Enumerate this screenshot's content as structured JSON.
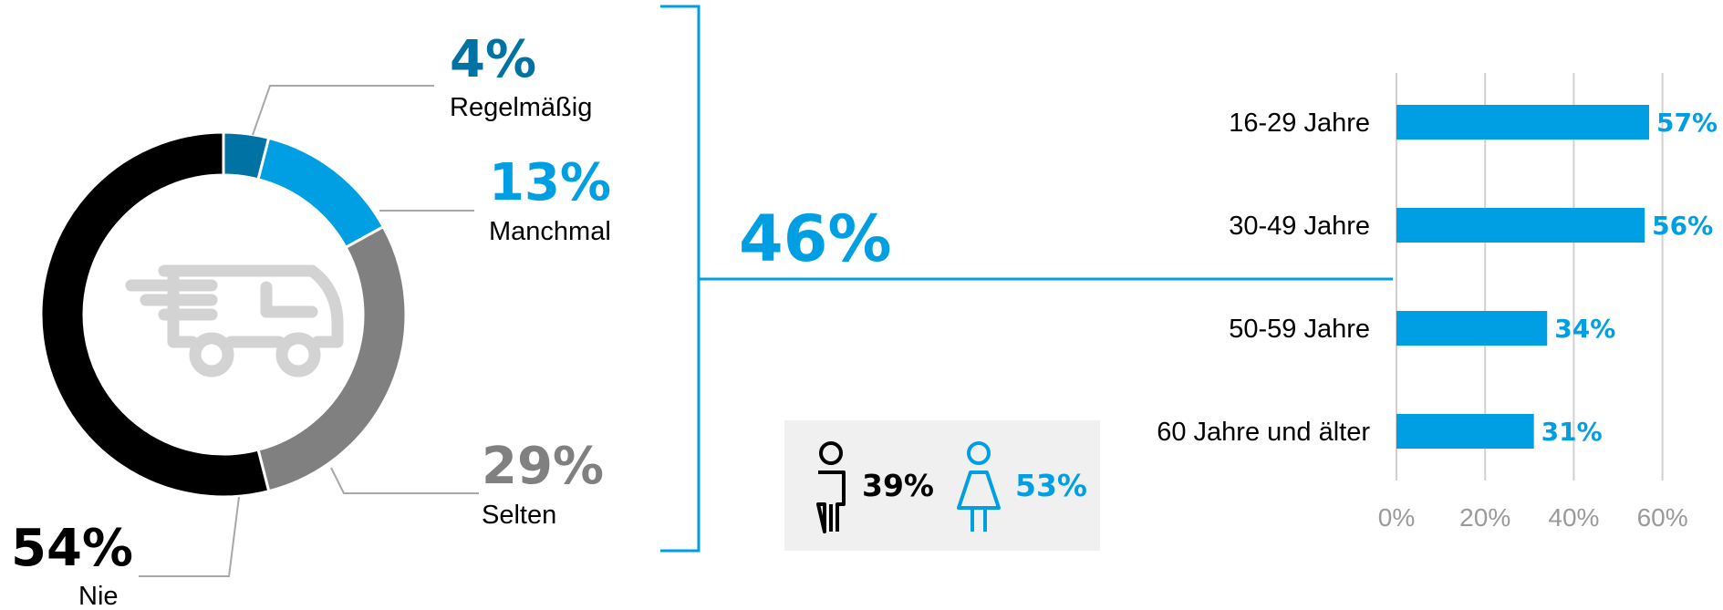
{
  "colors": {
    "dark_blue": "#0072A3",
    "light_blue": "#009FE3",
    "gray": "#808080",
    "black": "#000000",
    "icon_gray": "#D3D3D3",
    "grid": "#D0D0D0",
    "box_bg": "#F0F0F0"
  },
  "chart_data": [
    {
      "type": "pie",
      "donut": true,
      "center_icon": "delivery-van-icon",
      "slices": [
        {
          "label": "Regelmäßig",
          "value": 4,
          "display": "4%",
          "color": "#0072A3"
        },
        {
          "label": "Manchmal",
          "value": 13,
          "display": "13%",
          "color": "#009FE3"
        },
        {
          "label": "Selten",
          "value": 29,
          "display": "29%",
          "color": "#808080"
        },
        {
          "label": "Nie",
          "value": 54,
          "display": "54%",
          "color": "#000000"
        }
      ]
    },
    {
      "type": "bar",
      "orientation": "horizontal",
      "categories": [
        "16-29 Jahre",
        "30-49 Jahre",
        "50-59 Jahre",
        "60 Jahre und älter"
      ],
      "values": [
        57,
        56,
        34,
        31
      ],
      "value_labels": [
        "57%",
        "56%",
        "34%",
        "31%"
      ],
      "x_ticks": [
        "0%",
        "20%",
        "40%",
        "60%"
      ],
      "xlim": [
        0,
        60
      ],
      "grid": true,
      "color": "#009FE3"
    }
  ],
  "summary": {
    "bracket_value": "46%",
    "gender": {
      "male_icon": "male-person-icon",
      "male_value": "39%",
      "female_icon": "female-person-icon",
      "female_value": "53%"
    }
  }
}
